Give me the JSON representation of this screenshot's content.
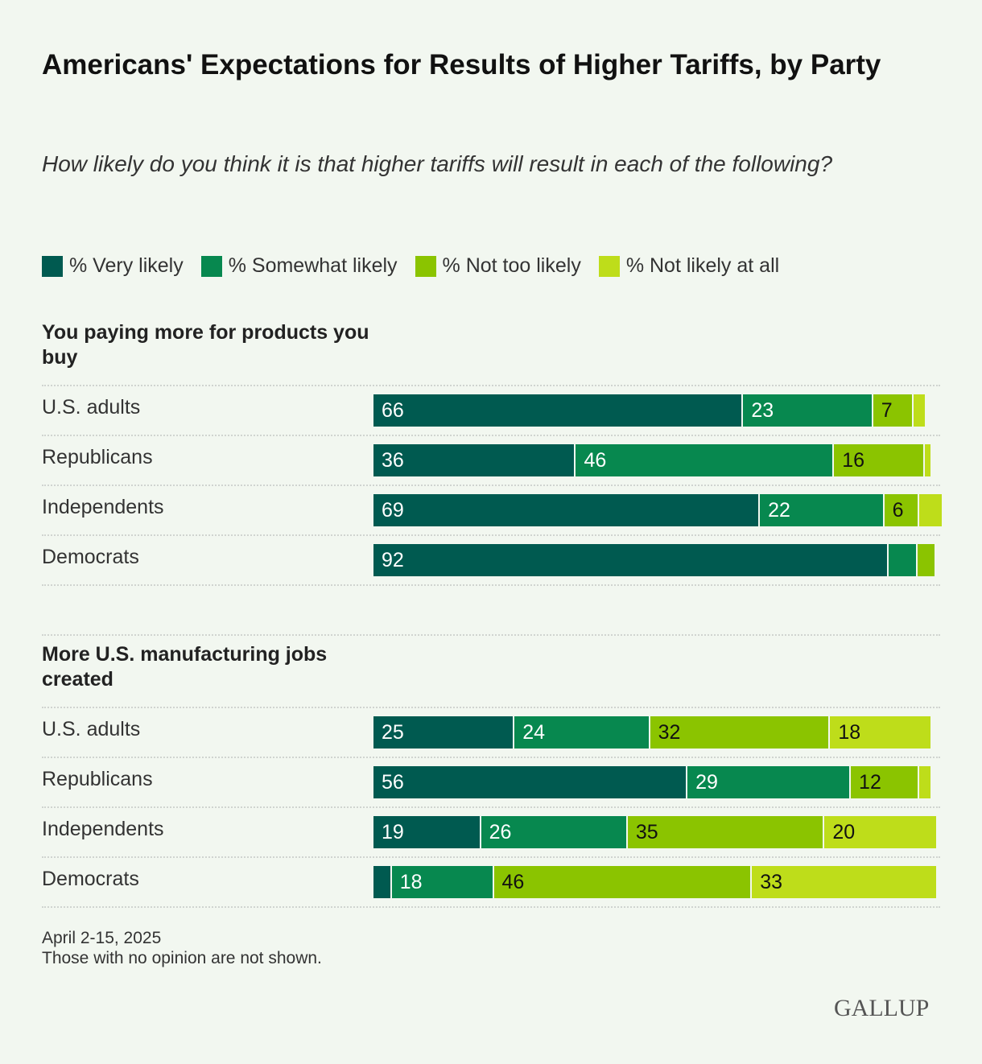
{
  "chart_data": {
    "type": "bar",
    "orientation": "horizontal-stacked",
    "title": "Americans' Expectations for Results of Higher Tariffs, by Party",
    "subtitle": "How likely do you think it is that higher tariffs will result in each of the following?",
    "legend": [
      "% Very likely",
      "% Somewhat likely",
      "% Not too likely",
      "% Not likely at all"
    ],
    "legend_placement": "top",
    "colors": [
      "#005a50",
      "#07884f",
      "#8bc400",
      "#bedd1a"
    ],
    "xlim": [
      0,
      100
    ],
    "groups": [
      {
        "title": "You paying more for products you buy",
        "rows": [
          {
            "label": "U.S. adults",
            "values": [
              66,
              23,
              7,
              2
            ],
            "labels": [
              "66",
              "23",
              "7",
              ""
            ]
          },
          {
            "label": "Republicans",
            "values": [
              36,
              46,
              16,
              1
            ],
            "labels": [
              "36",
              "46",
              "16",
              ""
            ]
          },
          {
            "label": "Independents",
            "values": [
              69,
              22,
              6,
              4
            ],
            "labels": [
              "69",
              "22",
              "6",
              ""
            ]
          },
          {
            "label": "Democrats",
            "values": [
              92,
              5,
              3,
              0
            ],
            "labels": [
              "92",
              "",
              "",
              ""
            ]
          }
        ]
      },
      {
        "title": "More U.S. manufacturing jobs created",
        "rows": [
          {
            "label": "U.S. adults",
            "values": [
              25,
              24,
              32,
              18
            ],
            "labels": [
              "25",
              "24",
              "32",
              "18"
            ]
          },
          {
            "label": "Republicans",
            "values": [
              56,
              29,
              12,
              2
            ],
            "labels": [
              "56",
              "29",
              "12",
              ""
            ]
          },
          {
            "label": "Independents",
            "values": [
              19,
              26,
              35,
              20
            ],
            "labels": [
              "19",
              "26",
              "35",
              "20"
            ]
          },
          {
            "label": "Democrats",
            "values": [
              3,
              18,
              46,
              33
            ],
            "labels": [
              "",
              "18",
              "46",
              "33"
            ]
          }
        ]
      }
    ]
  },
  "footer": {
    "date": "April 2-15, 2025",
    "note": "Those with no opinion are not shown.",
    "logo": "GALLUP"
  }
}
